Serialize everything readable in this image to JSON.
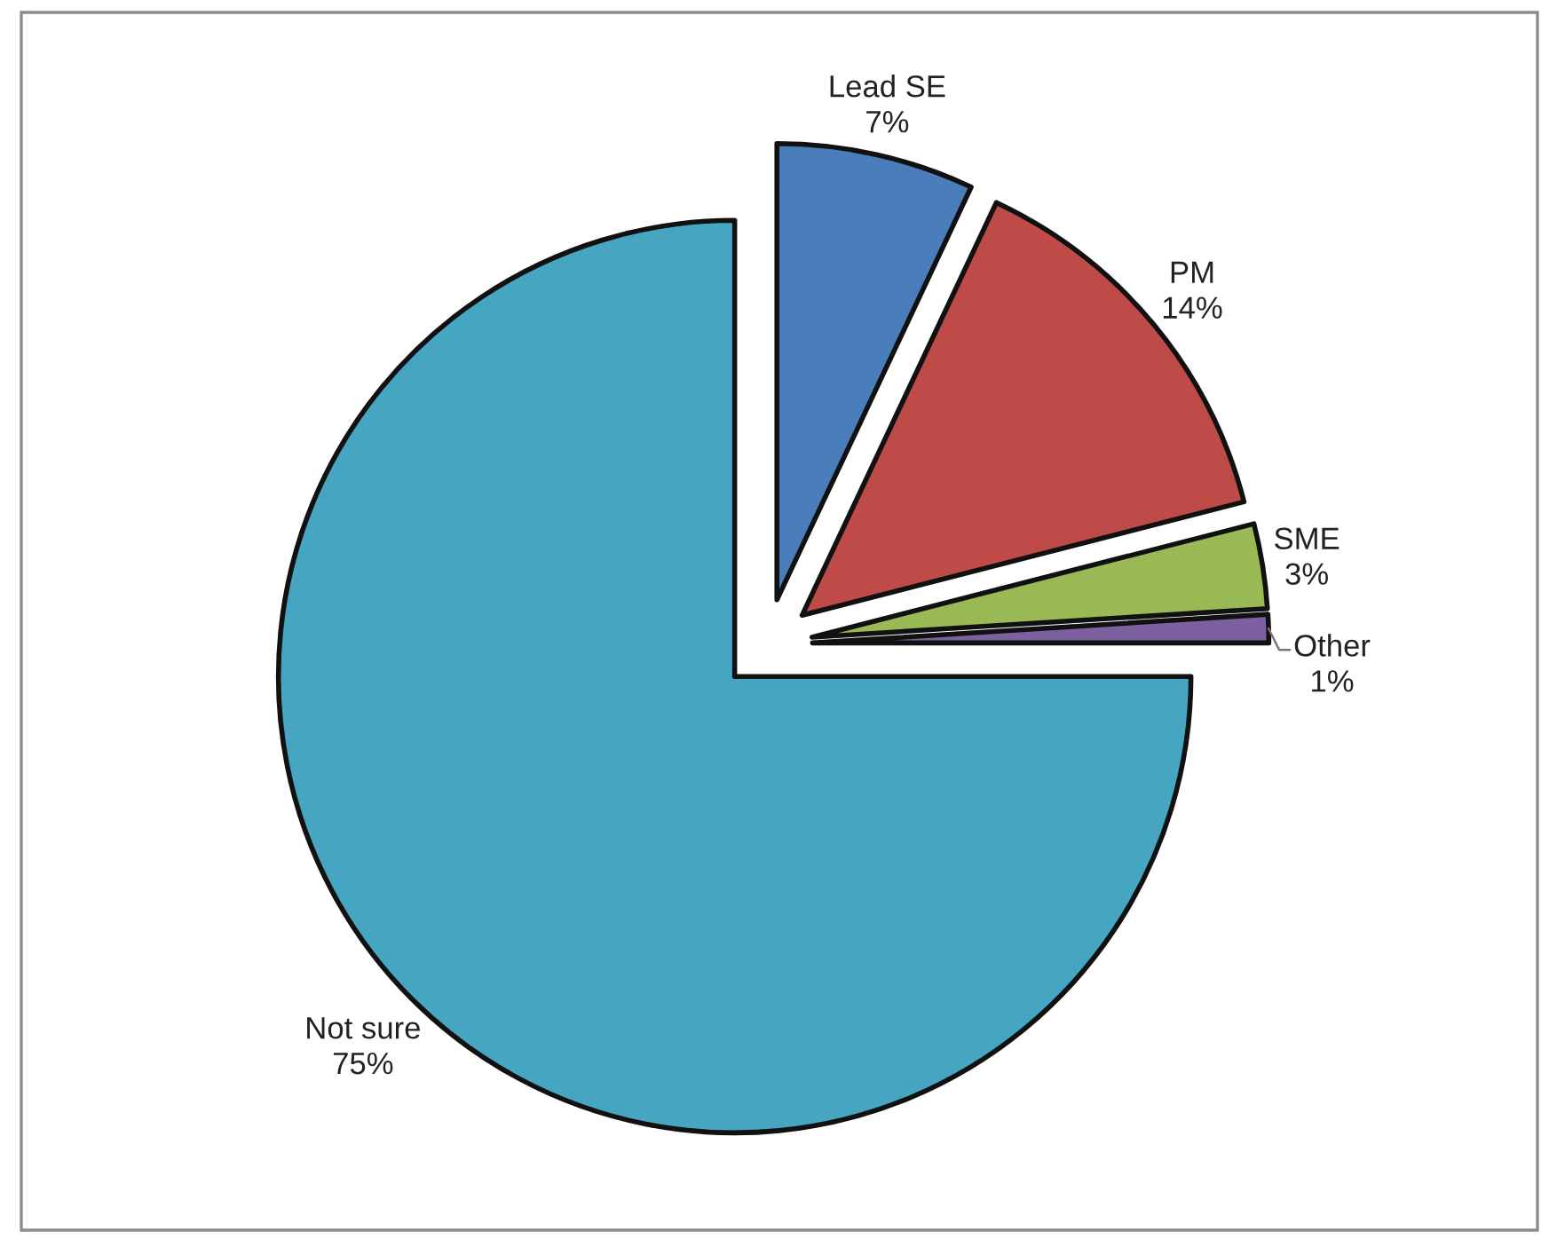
{
  "chart_data": {
    "type": "pie",
    "categories": [
      "Lead SE",
      "PM",
      "SME",
      "Other",
      "Not sure"
    ],
    "values": [
      7,
      14,
      3,
      1,
      75
    ],
    "colors": [
      "#4a7ebb",
      "#be4b48",
      "#98b954",
      "#7d60a0",
      "#46a6c1"
    ],
    "value_labels": [
      "7%",
      "14%",
      "3%",
      "1%",
      "75%"
    ]
  }
}
